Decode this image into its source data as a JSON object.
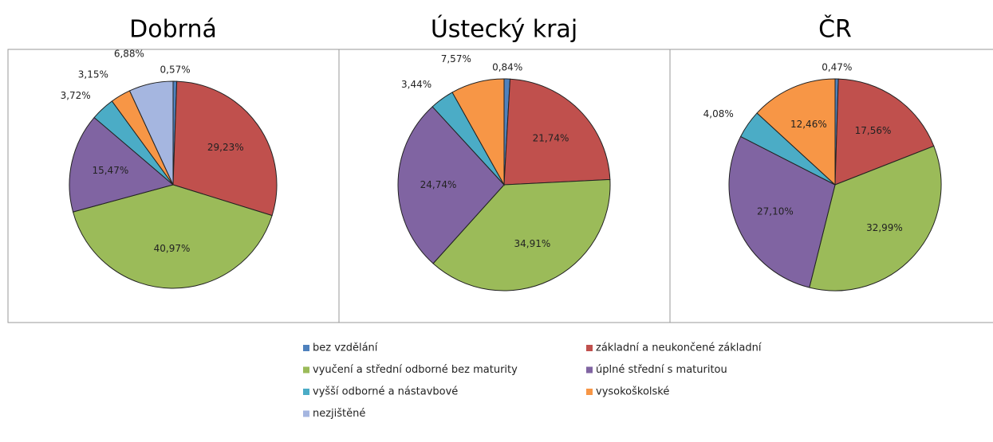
{
  "chart_data": [
    {
      "type": "pie",
      "title": "Dobrná",
      "categories": [
        "bez vzdělání",
        "základní a neukončené základní",
        "vyučení a střední odborné bez maturity",
        "úplné střední s maturitou",
        "vyšší odborné a nástavbové",
        "vysokoškolské",
        "nezjištěné"
      ],
      "values": [
        0.57,
        29.23,
        40.97,
        15.47,
        3.72,
        3.15,
        6.88
      ],
      "value_labels": [
        "0,57%",
        "29,23%",
        "40,97%",
        "15,47%",
        "3,72%",
        "3,15%",
        "6,88%"
      ],
      "colors": [
        "#4f81bd",
        "#c0504d",
        "#9bbb59",
        "#8064a2",
        "#4bacc6",
        "#f79646",
        "#a5b6e0"
      ]
    },
    {
      "type": "pie",
      "title": "Ústecký kraj",
      "categories": [
        "bez vzdělání",
        "základní a neukončené základní",
        "vyučení a střední odborné bez maturity",
        "úplné střední s maturitou",
        "vyšší odborné a nástavbové",
        "vysokoškolské"
      ],
      "values": [
        0.84,
        21.74,
        34.91,
        24.74,
        3.44,
        7.57
      ],
      "value_labels": [
        "0,84%",
        "21,74%",
        "34,91%",
        "24,74%",
        "3,44%",
        "7,57%"
      ],
      "colors": [
        "#4f81bd",
        "#c0504d",
        "#9bbb59",
        "#8064a2",
        "#4bacc6",
        "#f79646"
      ]
    },
    {
      "type": "pie",
      "title": "ČR",
      "categories": [
        "bez vzdělání",
        "základní a neukončené základní",
        "vyučení a střední odborné bez maturity",
        "úplné střední s maturitou",
        "vyšší odborné a nástavbové",
        "vysokoškolské"
      ],
      "values": [
        0.47,
        17.56,
        32.99,
        27.1,
        4.08,
        12.46
      ],
      "value_labels": [
        "0,47%",
        "17,56%",
        "32,99%",
        "27,10%",
        "4,08%",
        "12,46%"
      ],
      "colors": [
        "#4f81bd",
        "#c0504d",
        "#9bbb59",
        "#8064a2",
        "#4bacc6",
        "#f79646"
      ]
    }
  ]
}
